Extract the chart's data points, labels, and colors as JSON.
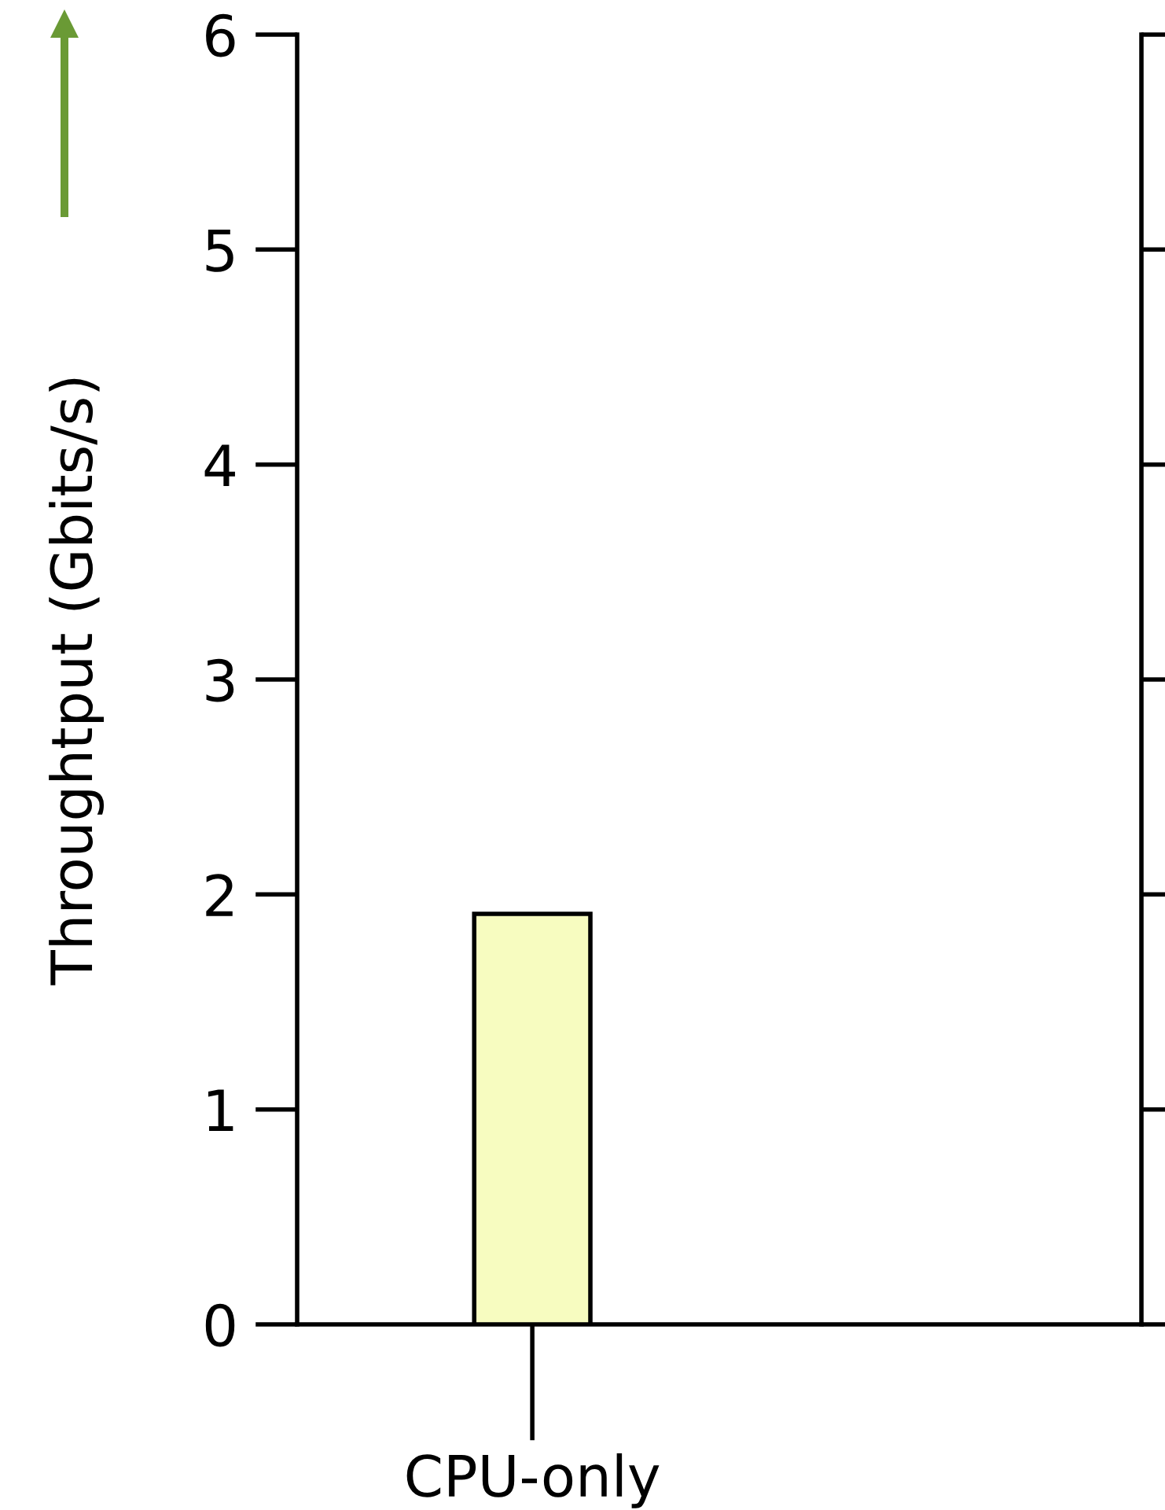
{
  "chart_data": {
    "type": "bar",
    "ylabel": "Throughtput (Gbits/s)",
    "categories": [
      "CPU-only"
    ],
    "values": [
      1.91
    ],
    "color": "#f7fcc0",
    "ylim": [
      0,
      6
    ],
    "yticks": [
      0,
      1,
      2,
      3,
      4,
      5,
      6
    ],
    "grid": false,
    "legend": false
  }
}
